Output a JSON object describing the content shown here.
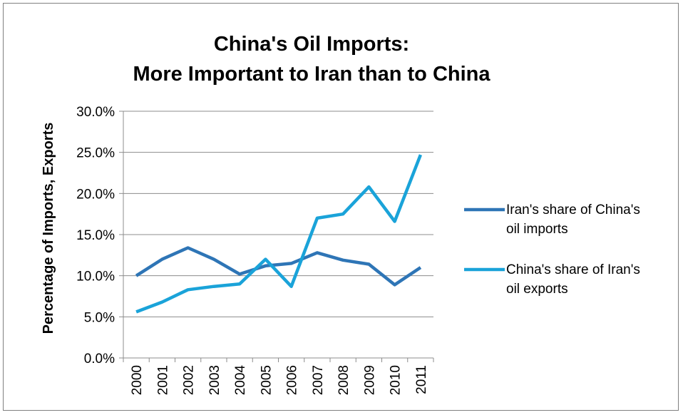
{
  "chart_data": {
    "type": "line",
    "title_lines": [
      "China's Oil Imports:",
      "More Important to Iran than to China"
    ],
    "xlabel": "",
    "ylabel": "Percentage of Imports, Exports",
    "categories": [
      "2000",
      "2001",
      "2002",
      "2003",
      "2004",
      "2005",
      "2006",
      "2007",
      "2008",
      "2009",
      "2010",
      "2011"
    ],
    "yticks": [
      "0.0%",
      "5.0%",
      "10.0%",
      "15.0%",
      "20.0%",
      "25.0%",
      "30.0%"
    ],
    "ylim": [
      0,
      30
    ],
    "grid": true,
    "legend_position": "right",
    "series": [
      {
        "name": "Iran's share of China's oil imports",
        "legend_lines": [
          "Iran's share of China's",
          "oil imports"
        ],
        "color": "#2E75B6",
        "values": [
          10.0,
          12.0,
          13.4,
          12.0,
          10.2,
          11.2,
          11.5,
          12.8,
          11.9,
          11.4,
          8.9,
          11.0
        ]
      },
      {
        "name": "China's share of Iran's oil exports",
        "legend_lines": [
          "China's share of Iran's",
          "oil exports"
        ],
        "color": "#1AA3D9",
        "values": [
          5.6,
          6.8,
          8.3,
          8.7,
          9.0,
          12.0,
          8.7,
          17.0,
          17.5,
          20.8,
          16.6,
          24.7
        ]
      }
    ]
  }
}
